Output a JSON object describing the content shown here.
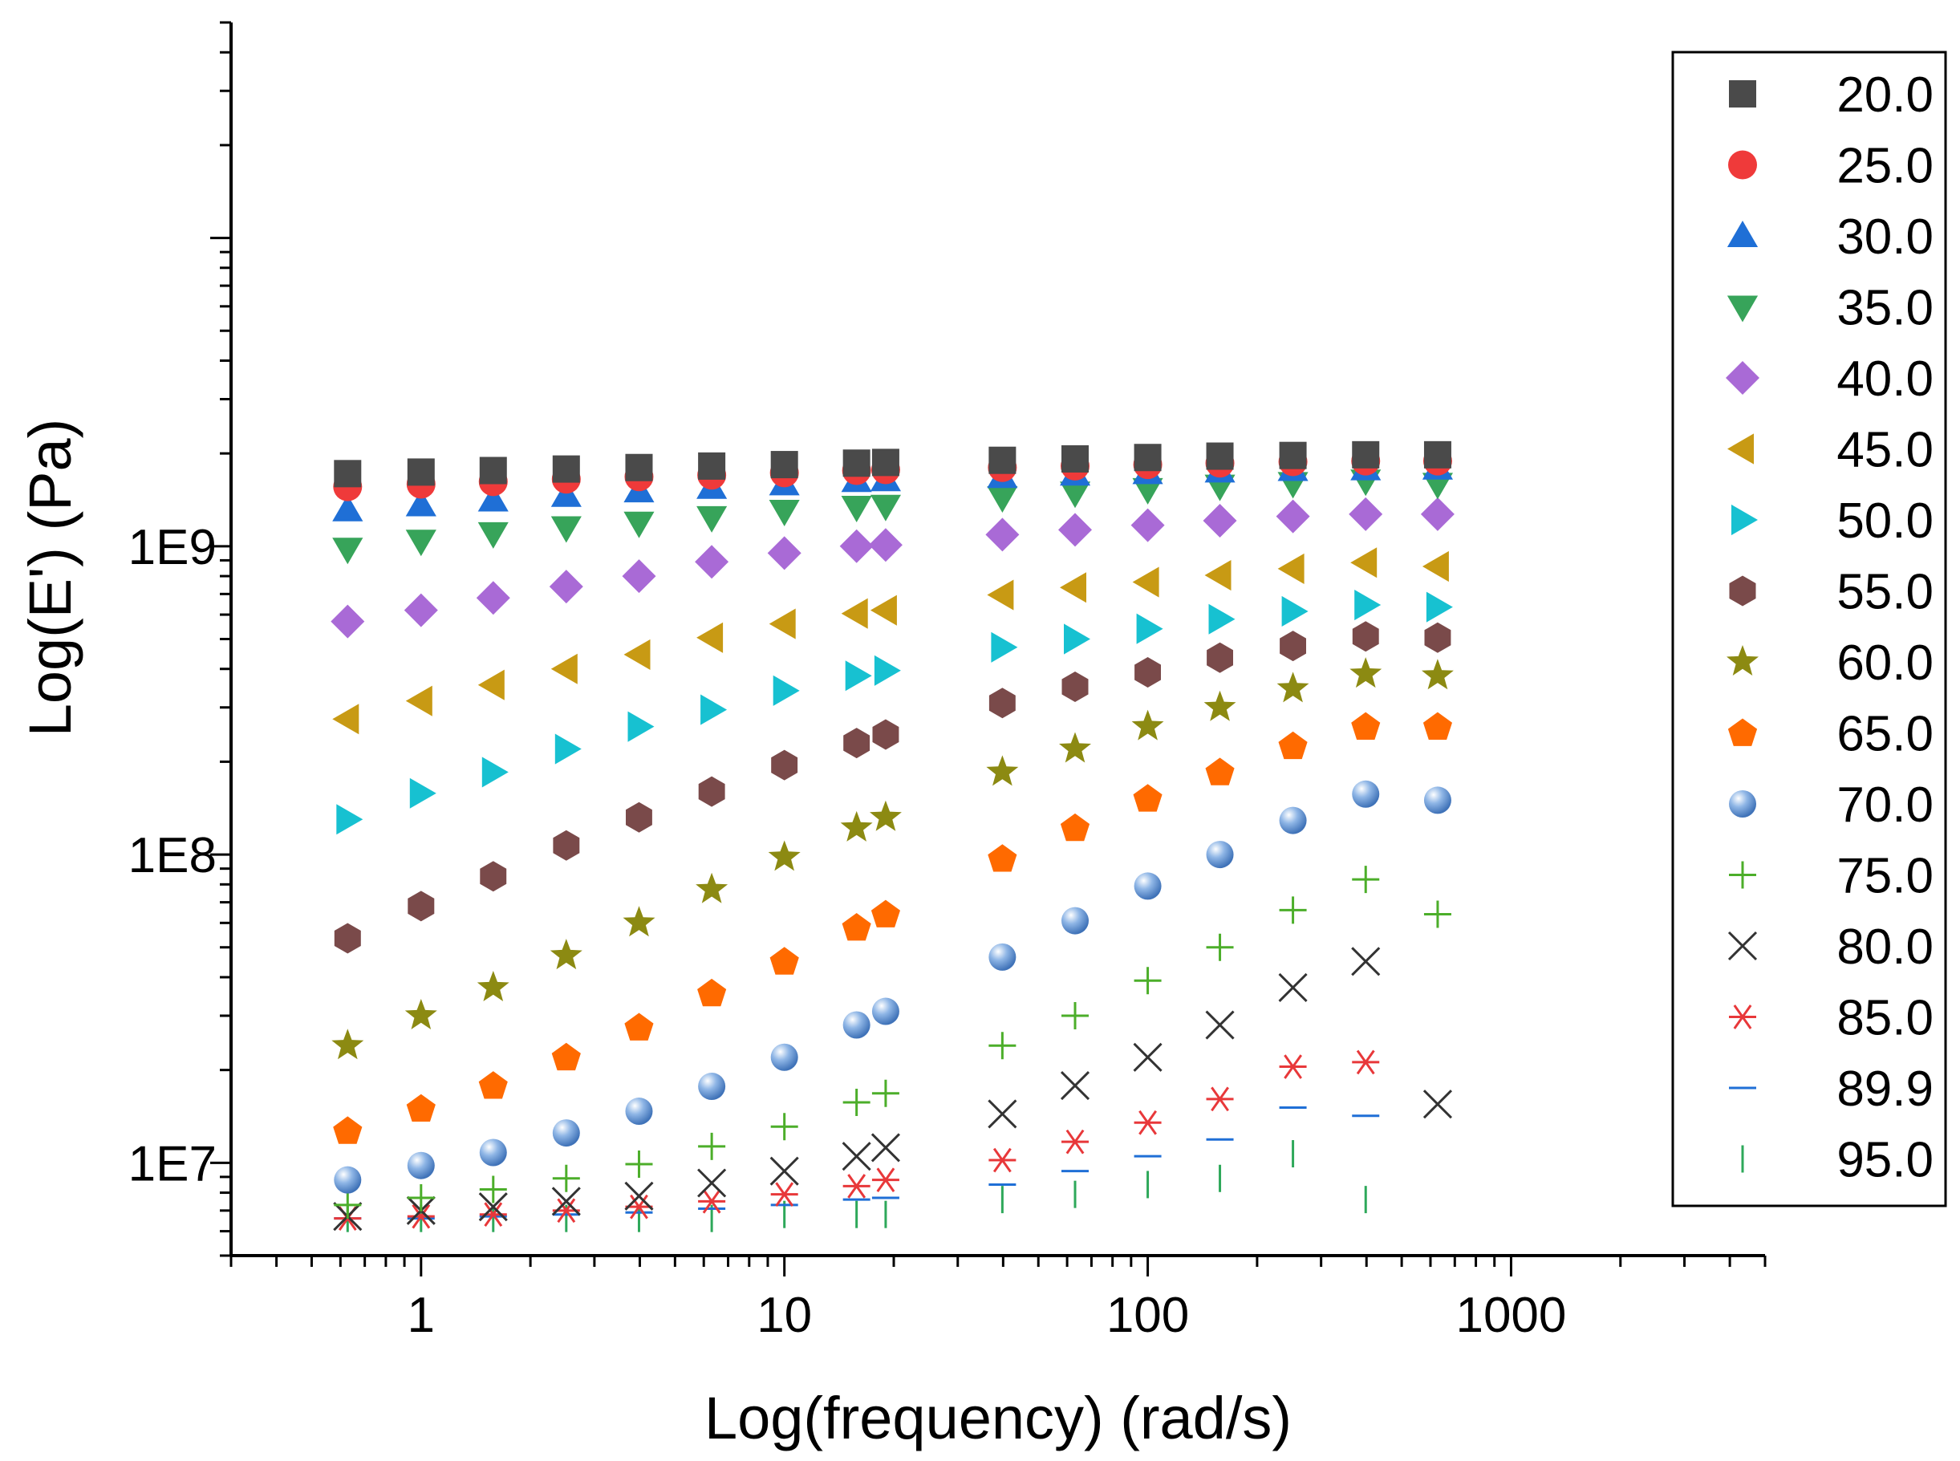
{
  "chart_data": {
    "type": "scatter",
    "title": "",
    "xlabel": "Log(frequency) (rad/s)",
    "ylabel": "Log(E') (Pa)",
    "xscale": "log",
    "yscale": "log",
    "xlim": [
      0.3,
      5000
    ],
    "ylim": [
      5000000,
      50000000000
    ],
    "grid": false,
    "legend_position": "right",
    "x_tick_labels": [
      "1",
      "10",
      "100",
      "1000"
    ],
    "y_tick_labels": [
      "1E7",
      "1E8",
      "1E9"
    ],
    "x": [
      0.628,
      1.0,
      1.58,
      2.51,
      3.98,
      6.31,
      10.0,
      15.8,
      19.0,
      39.8,
      63.1,
      100,
      158,
      251,
      398,
      628
    ],
    "series": [
      {
        "name": "20.0",
        "marker": "square",
        "color": "#4a4a4a",
        "values": [
          1720000000.0,
          1740000000.0,
          1760000000.0,
          1780000000.0,
          1800000000.0,
          1820000000.0,
          1840000000.0,
          1860000000.0,
          1870000000.0,
          1900000000.0,
          1920000000.0,
          1940000000.0,
          1960000000.0,
          1970000000.0,
          1980000000.0,
          1980000000.0
        ]
      },
      {
        "name": "25.0",
        "marker": "circle",
        "color": "#ef3a3a",
        "values": [
          1560000000.0,
          1590000000.0,
          1620000000.0,
          1650000000.0,
          1680000000.0,
          1700000000.0,
          1730000000.0,
          1760000000.0,
          1770000000.0,
          1800000000.0,
          1820000000.0,
          1840000000.0,
          1860000000.0,
          1880000000.0,
          1890000000.0,
          1890000000.0
        ]
      },
      {
        "name": "30.0",
        "marker": "triangle-up",
        "color": "#1f6fd6",
        "values": [
          1310000000.0,
          1360000000.0,
          1410000000.0,
          1460000000.0,
          1510000000.0,
          1550000000.0,
          1590000000.0,
          1630000000.0,
          1640000000.0,
          1680000000.0,
          1710000000.0,
          1730000000.0,
          1750000000.0,
          1770000000.0,
          1780000000.0,
          1790000000.0
        ]
      },
      {
        "name": "35.0",
        "marker": "triangle-down",
        "color": "#37a45a",
        "values": [
          980000000.0,
          1040000000.0,
          1100000000.0,
          1150000000.0,
          1190000000.0,
          1240000000.0,
          1300000000.0,
          1340000000.0,
          1350000000.0,
          1440000000.0,
          1490000000.0,
          1530000000.0,
          1570000000.0,
          1600000000.0,
          1630000000.0,
          1590000000.0
        ]
      },
      {
        "name": "40.0",
        "marker": "diamond",
        "color": "#a96ad6",
        "values": [
          570000000.0,
          620000000.0,
          680000000.0,
          740000000.0,
          800000000.0,
          890000000.0,
          950000000.0,
          1000000000.0,
          1010000000.0,
          1090000000.0,
          1130000000.0,
          1170000000.0,
          1210000000.0,
          1250000000.0,
          1270000000.0,
          1270000000.0
        ]
      },
      {
        "name": "45.0",
        "marker": "triangle-left",
        "color": "#c89a14",
        "values": [
          275000000.0,
          315000000.0,
          355000000.0,
          400000000.0,
          445000000.0,
          505000000.0,
          560000000.0,
          605000000.0,
          620000000.0,
          695000000.0,
          735000000.0,
          765000000.0,
          805000000.0,
          845000000.0,
          885000000.0,
          860000000.0
        ]
      },
      {
        "name": "50.0",
        "marker": "triangle-right",
        "color": "#17c1d1",
        "values": [
          130000000.0,
          158000000.0,
          185000000.0,
          220000000.0,
          260000000.0,
          295000000.0,
          340000000.0,
          380000000.0,
          395000000.0,
          470000000.0,
          500000000.0,
          540000000.0,
          580000000.0,
          615000000.0,
          645000000.0,
          635000000.0
        ]
      },
      {
        "name": "55.0",
        "marker": "hexagon",
        "color": "#7a4a4a",
        "values": [
          53500000.0,
          68000000.0,
          85000000.0,
          107000000.0,
          132000000.0,
          160000000.0,
          195000000.0,
          230000000.0,
          245000000.0,
          310000000.0,
          350000000.0,
          390000000.0,
          435000000.0,
          475000000.0,
          510000000.0,
          505000000.0
        ]
      },
      {
        "name": "60.0",
        "marker": "star",
        "color": "#8c8a12",
        "values": [
          24000000.0,
          30000000.0,
          37000000.0,
          47000000.0,
          60000000.0,
          77000000.0,
          98000000.0,
          122000000.0,
          132000000.0,
          185000000.0,
          220000000.0,
          260000000.0,
          300000000.0,
          345000000.0,
          385000000.0,
          380000000.0
        ]
      },
      {
        "name": "65.0",
        "marker": "pentagon",
        "color": "#ff6a00",
        "values": [
          12700000.0,
          15000000.0,
          17800000.0,
          22000000.0,
          27500000.0,
          35500000.0,
          45000000.0,
          58000000.0,
          64000000.0,
          97000000.0,
          122000000.0,
          152000000.0,
          185000000.0,
          225000000.0,
          260000000.0,
          260000000.0
        ]
      },
      {
        "name": "70.0",
        "marker": "sphere",
        "color": "#6f9fdb",
        "values": [
          8800000.0,
          9800000.0,
          10800000.0,
          12500000.0,
          14700000.0,
          17700000.0,
          22000000.0,
          28000000.0,
          31000000.0,
          46500000.0,
          61000000.0,
          79000000.0,
          100000000.0,
          129000000.0,
          157000000.0,
          150000000.0
        ]
      },
      {
        "name": "75.0",
        "marker": "plus",
        "color": "#4cae2a",
        "values": [
          7300000.0,
          7700000.0,
          8200000.0,
          8900000.0,
          9900000.0,
          11300000.0,
          13100000.0,
          15700000.0,
          16800000.0,
          24000000.0,
          30000000.0,
          39000000.0,
          50000000.0,
          66000000.0,
          83000000.0,
          64000000.0
        ]
      },
      {
        "name": "80.0",
        "marker": "x",
        "color": "#333333",
        "values": [
          6700000.0,
          7000000.0,
          7200000.0,
          7500000.0,
          7800000.0,
          8600000.0,
          9400000.0,
          10500000.0,
          11200000.0,
          14400000.0,
          17800000.0,
          22000000.0,
          28000000.0,
          37000000.0,
          45000000.0,
          15500000.0
        ]
      },
      {
        "name": "85.0",
        "marker": "asterisk",
        "color": "#e8383a",
        "values": [
          6600000.0,
          6700000.0,
          6800000.0,
          7000000.0,
          7200000.0,
          7500000.0,
          7900000.0,
          8400000.0,
          8800000.0,
          10200000.0,
          11700000.0,
          13500000.0,
          16100000.0,
          20500000.0,
          21200000.0,
          null
        ]
      },
      {
        "name": "89.9",
        "marker": "hline",
        "color": "#1f6fd6",
        "values": [
          6600000.0,
          6600000.0,
          6700000.0,
          6800000.0,
          6900000.0,
          7100000.0,
          7300000.0,
          7600000.0,
          7700000.0,
          8500000.0,
          9400000.0,
          10500000.0,
          11900000.0,
          15100000.0,
          14200000.0,
          null
        ]
      },
      {
        "name": "95.0",
        "marker": "vline",
        "color": "#2ea85a",
        "values": [
          6600000.0,
          6600000.0,
          6600000.0,
          6600000.0,
          6600000.0,
          6600000.0,
          6800000.0,
          6800000.0,
          6800000.0,
          7600000.0,
          7900000.0,
          8500000.0,
          8900000.0,
          10700000.0,
          7600000.0,
          null
        ]
      }
    ]
  }
}
